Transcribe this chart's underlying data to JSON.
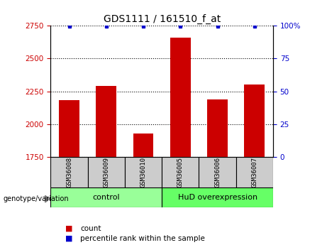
{
  "title": "GDS1111 / 161510_f_at",
  "samples": [
    "GSM36008",
    "GSM36009",
    "GSM36010",
    "GSM36005",
    "GSM36006",
    "GSM36007"
  ],
  "counts": [
    2185,
    2290,
    1930,
    2660,
    2190,
    2300
  ],
  "percentiles": [
    99.5,
    99.5,
    99.5,
    99.5,
    99.5,
    99.5
  ],
  "ylim_left": [
    1750,
    2750
  ],
  "ylim_right": [
    0,
    100
  ],
  "yticks_left": [
    1750,
    2000,
    2250,
    2500,
    2750
  ],
  "yticks_right": [
    0,
    25,
    50,
    75,
    100
  ],
  "bar_color": "#cc0000",
  "dot_color": "#0000cc",
  "groups": [
    {
      "label": "control",
      "start": 0,
      "end": 3,
      "color": "#99ff99"
    },
    {
      "label": "HuD overexpression",
      "start": 3,
      "end": 6,
      "color": "#66ff66"
    }
  ],
  "legend_items": [
    {
      "color": "#cc0000",
      "label": "count"
    },
    {
      "color": "#0000cc",
      "label": "percentile rank within the sample"
    }
  ],
  "left_tick_color": "#cc0000",
  "right_tick_color": "#0000cc",
  "grid_color": "#000000",
  "background_color": "#ffffff",
  "sample_box_color": "#cccccc",
  "genotype_label": "genotype/variation"
}
